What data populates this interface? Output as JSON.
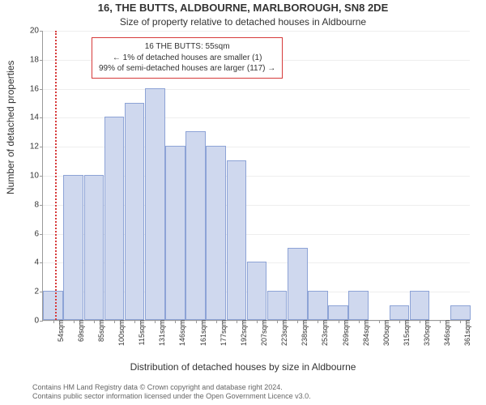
{
  "title": "16, THE BUTTS, ALDBOURNE, MARLBOROUGH, SN8 2DE",
  "subtitle": "Size of property relative to detached houses in Aldbourne",
  "ylabel": "Number of detached properties",
  "xlabel": "Distribution of detached houses by size in Aldbourne",
  "footer_line1": "Contains HM Land Registry data © Crown copyright and database right 2024.",
  "footer_line2": "Contains public sector information licensed under the Open Government Licence v3.0.",
  "chart": {
    "type": "histogram",
    "ylim": [
      0,
      20
    ],
    "ytick_step": 2,
    "bar_color": "#cfd8ee",
    "bar_border_color": "#8da3d6",
    "grid_color": "#eeeeee",
    "background_color": "#ffffff",
    "categories": [
      "54sqm",
      "69sqm",
      "85sqm",
      "100sqm",
      "115sqm",
      "131sqm",
      "146sqm",
      "161sqm",
      "177sqm",
      "192sqm",
      "207sqm",
      "223sqm",
      "238sqm",
      "253sqm",
      "269sqm",
      "284sqm",
      "300sqm",
      "315sqm",
      "330sqm",
      "346sqm",
      "361sqm"
    ],
    "values": [
      2,
      10,
      10,
      14,
      15,
      16,
      12,
      13,
      12,
      11,
      4,
      2,
      5,
      2,
      1,
      2,
      0,
      1,
      2,
      0,
      1
    ],
    "marker": {
      "x_sqm": 55,
      "color": "#d63a3a"
    },
    "annotation": {
      "lines": [
        "16 THE BUTTS: 55sqm",
        "← 1% of detached houses are smaller (1)",
        "99% of semi-detached houses are larger (117) →"
      ],
      "border_color": "#d63a3a"
    },
    "tick_fontsize": 10,
    "label_fontsize": 12,
    "title_fontsize": 13
  },
  "x_range_sqm": [
    46,
    369
  ]
}
